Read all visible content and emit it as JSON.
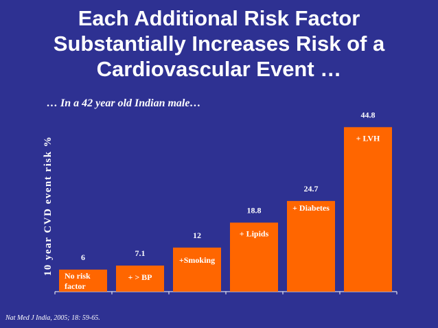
{
  "title_lines": [
    "Each Additional Risk Factor",
    "Substantially Increases Risk of a",
    "Cardiovascular Event …"
  ],
  "subtitle": "… In a 42 year old Indian male…",
  "source": "Nat Med J India, 2005; 18: 59-65.",
  "colors": {
    "background": "#2e3192",
    "bar": "#ff6600",
    "text": "#ffffff"
  },
  "chart_data": {
    "type": "bar",
    "title": "",
    "xlabel": "",
    "ylabel": "10 year CVD event risk %",
    "categories": [
      "No risk factor",
      "+ > BP",
      "+Smoking",
      "+ Lipids",
      "+ Diabetes",
      "+ LVH"
    ],
    "values": [
      6,
      7.1,
      12,
      18.8,
      24.7,
      44.8
    ],
    "value_labels": [
      "6",
      "7.1",
      "12",
      "18.8",
      "24.7",
      "44.8"
    ],
    "ylim": [
      0,
      50
    ],
    "grid": false,
    "legend": "none"
  }
}
